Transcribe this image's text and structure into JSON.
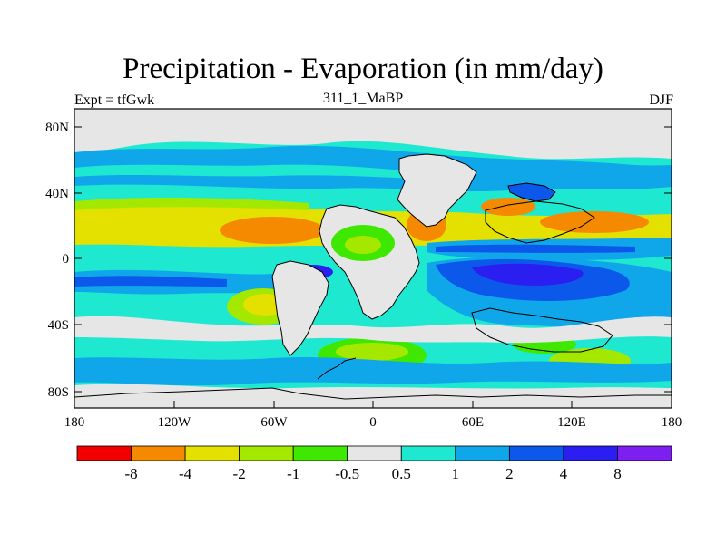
{
  "title": "Precipitation - Evaporation (in mm/day)",
  "subtitle_left": "Expt = tfGwk",
  "subtitle_center": "311_1_MaBP",
  "subtitle_right": "DJF",
  "x_ticks": [
    "180",
    "120W",
    "60W",
    "0",
    "60E",
    "120E",
    "180"
  ],
  "y_ticks": [
    "80N",
    "40N",
    "0",
    "40S",
    "80S"
  ],
  "colorbar": {
    "colors": [
      "#f20000",
      "#f58a00",
      "#e4e000",
      "#a4e800",
      "#3ee800",
      "#e6e6e6",
      "#1ee8d0",
      "#0fa7ea",
      "#0b58ea",
      "#2a1ef0",
      "#7c1ff0"
    ],
    "labels": [
      "-8",
      "-4",
      "-2",
      "-1",
      "-0.5",
      "0.5",
      "1",
      "2",
      "4",
      "8"
    ]
  },
  "colors": {
    "grey": "#e6e6e6",
    "cyan": "#1ee8d0",
    "lightblue": "#0fa7ea",
    "blue": "#0b58ea",
    "darkblue": "#2a1ef0",
    "violet": "#7c1ff0",
    "green": "#3ee800",
    "lightgreen": "#a4e800",
    "yellow": "#e4e000",
    "orange": "#f58a00",
    "red": "#f20000"
  }
}
